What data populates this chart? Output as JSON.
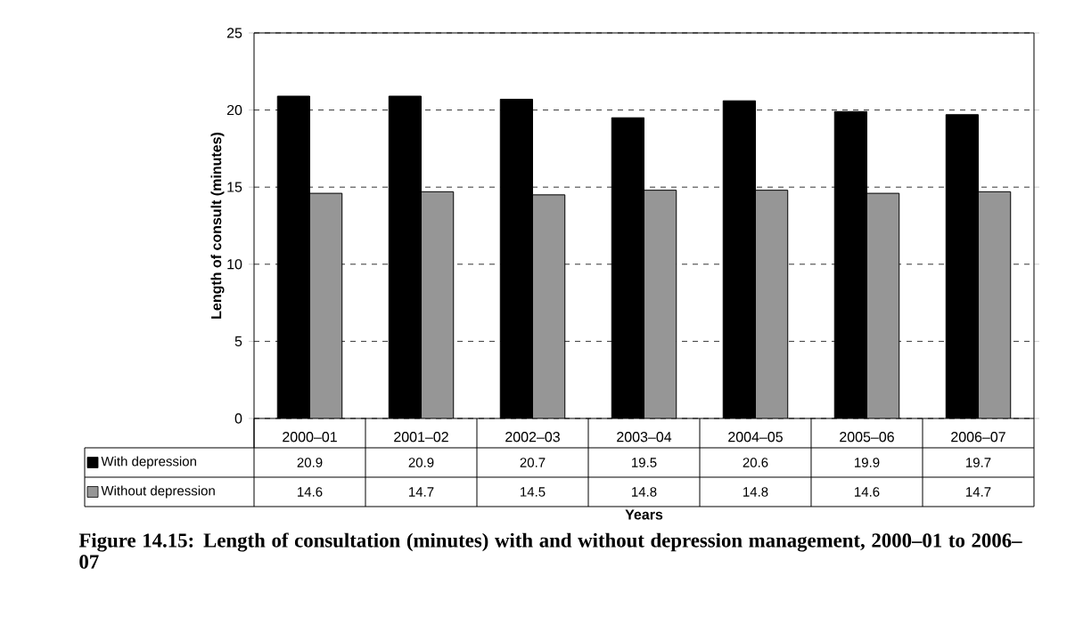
{
  "chart_data": {
    "type": "bar",
    "title": "Figure 14.15: Length of consultation (minutes) with and without depression management, 2000–01 to 2006–07",
    "xlabel": "Years",
    "ylabel": "Length of consult (minutes)",
    "categories": [
      "2000–01",
      "2001–02",
      "2002–03",
      "2003–04",
      "2004–05",
      "2005–06",
      "2006–07"
    ],
    "series": [
      {
        "name": "With depression",
        "color": "#000000",
        "values": [
          20.9,
          20.9,
          20.7,
          19.5,
          20.6,
          19.9,
          19.7
        ]
      },
      {
        "name": "Without depression",
        "color": "#969696",
        "values": [
          14.6,
          14.7,
          14.5,
          14.8,
          14.8,
          14.6,
          14.7
        ]
      }
    ],
    "ylim": [
      0,
      25
    ],
    "yticks": [
      0,
      5,
      10,
      15,
      20,
      25
    ],
    "grid": "y",
    "legend": "bottom",
    "data_labels": true
  }
}
